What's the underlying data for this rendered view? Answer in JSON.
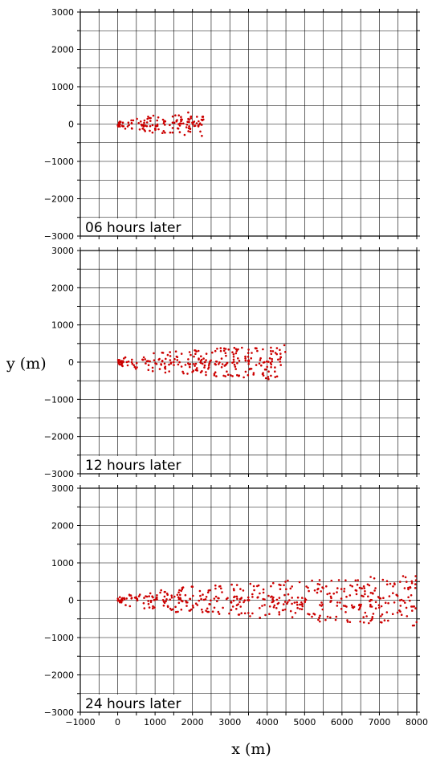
{
  "chart_data": {
    "type": "scatter",
    "xlabel": "x (m)",
    "ylabel": "y (m)",
    "xlim": [
      -1000,
      8000
    ],
    "ylim": [
      -3000,
      3000
    ],
    "xticks": [
      "−1000",
      "0",
      "1000",
      "2000",
      "3000",
      "4000",
      "5000",
      "6000",
      "7000",
      "8000"
    ],
    "yticks": [
      "3000",
      "2000",
      "1000",
      "0",
      "−1000",
      "−2000",
      "−3000"
    ],
    "grid": true,
    "marker_color": "#cc0000",
    "panels": [
      {
        "label": "06 hours later",
        "max_x": 2300,
        "max_half_width": 300
      },
      {
        "label": "12 hours later",
        "max_x": 4500,
        "max_half_width": 450
      },
      {
        "label": "24 hours later",
        "max_x": 8000,
        "max_half_width": 650
      }
    ]
  }
}
